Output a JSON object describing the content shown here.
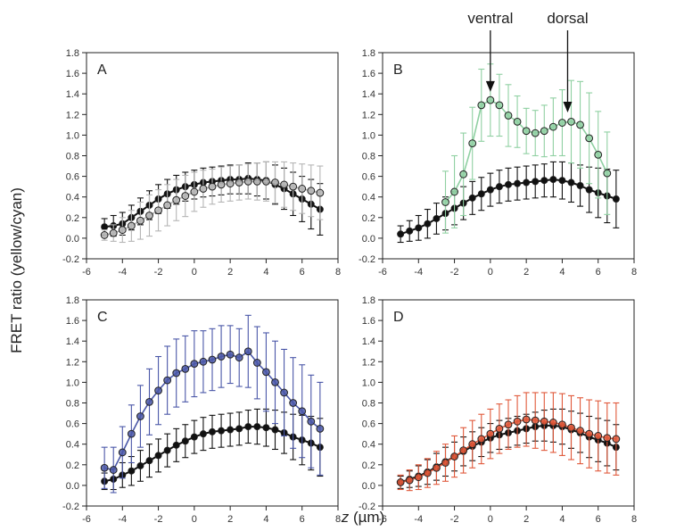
{
  "figure": {
    "ylabel": "FRET ratio (yellow/cyan)",
    "xlabel_italic": "z",
    "xlabel_unit": " (µm)"
  },
  "annotations": [
    {
      "label": "ventral",
      "x": 0.0
    },
    {
      "label": "dorsal",
      "x": 4.3
    }
  ],
  "colors": {
    "reference": "#111111",
    "A": "#b5b5b5",
    "B": "#8fd0a2",
    "C": "#4a57a8",
    "D": "#e0583a"
  },
  "chart_data": [
    {
      "type": "line",
      "panel": "A",
      "xlim": [
        -6,
        8
      ],
      "ylim": [
        -0.2,
        1.8
      ],
      "xticks": [
        -6,
        -4,
        -2,
        0,
        2,
        4,
        6,
        8
      ],
      "yticks": [
        -0.2,
        0.0,
        0.2,
        0.4,
        0.6,
        0.8,
        1.0,
        1.2,
        1.4,
        1.6,
        1.8
      ],
      "series": [
        {
          "style": "reference",
          "x": [
            -5,
            -4.5,
            -4,
            -3.5,
            -3,
            -2.5,
            -2,
            -1.5,
            -1,
            -0.5,
            0,
            0.5,
            1,
            1.5,
            2,
            2.5,
            3,
            3.5,
            4,
            4.5,
            5,
            5.5,
            6,
            6.5,
            7
          ],
          "y": [
            0.11,
            0.12,
            0.14,
            0.2,
            0.26,
            0.32,
            0.38,
            0.43,
            0.47,
            0.5,
            0.52,
            0.54,
            0.55,
            0.56,
            0.57,
            0.57,
            0.58,
            0.57,
            0.56,
            0.52,
            0.48,
            0.43,
            0.38,
            0.33,
            0.28
          ],
          "err": [
            0.08,
            0.1,
            0.11,
            0.12,
            0.13,
            0.14,
            0.14,
            0.14,
            0.14,
            0.14,
            0.14,
            0.14,
            0.14,
            0.14,
            0.14,
            0.14,
            0.15,
            0.16,
            0.18,
            0.19,
            0.2,
            0.21,
            0.22,
            0.24,
            0.25
          ]
        },
        {
          "style": "A",
          "x": [
            -5,
            -4.5,
            -4,
            -3.5,
            -3,
            -2.5,
            -2,
            -1.5,
            -1,
            -0.5,
            0,
            0.5,
            1,
            1.5,
            2,
            2.5,
            3,
            3.5,
            4,
            4.5,
            5,
            5.5,
            6,
            6.5,
            7
          ],
          "y": [
            0.03,
            0.05,
            0.08,
            0.12,
            0.17,
            0.22,
            0.27,
            0.32,
            0.37,
            0.41,
            0.45,
            0.48,
            0.5,
            0.52,
            0.53,
            0.54,
            0.55,
            0.55,
            0.55,
            0.54,
            0.52,
            0.5,
            0.48,
            0.46,
            0.44
          ],
          "err": [
            0.05,
            0.08,
            0.12,
            0.15,
            0.18,
            0.2,
            0.2,
            0.2,
            0.2,
            0.2,
            0.19,
            0.18,
            0.17,
            0.17,
            0.17,
            0.17,
            0.17,
            0.18,
            0.19,
            0.2,
            0.22,
            0.23,
            0.24,
            0.25,
            0.26
          ]
        }
      ]
    },
    {
      "type": "line",
      "panel": "B",
      "xlim": [
        -6,
        8
      ],
      "ylim": [
        -0.2,
        1.8
      ],
      "xticks": [
        -6,
        -4,
        -2,
        0,
        2,
        4,
        6,
        8
      ],
      "yticks": [
        -0.2,
        0.0,
        0.2,
        0.4,
        0.6,
        0.8,
        1.0,
        1.2,
        1.4,
        1.6,
        1.8
      ],
      "series": [
        {
          "style": "reference",
          "x": [
            -5,
            -4.5,
            -4,
            -3.5,
            -3,
            -2.5,
            -2,
            -1.5,
            -1,
            -0.5,
            0,
            0.5,
            1,
            1.5,
            2,
            2.5,
            3,
            3.5,
            4,
            4.5,
            5,
            5.5,
            6,
            6.5,
            7
          ],
          "y": [
            0.04,
            0.07,
            0.1,
            0.14,
            0.19,
            0.24,
            0.29,
            0.34,
            0.39,
            0.43,
            0.47,
            0.5,
            0.52,
            0.53,
            0.54,
            0.55,
            0.56,
            0.57,
            0.56,
            0.54,
            0.51,
            0.47,
            0.44,
            0.41,
            0.38
          ],
          "err": [
            0.08,
            0.1,
            0.12,
            0.14,
            0.15,
            0.16,
            0.16,
            0.16,
            0.16,
            0.16,
            0.16,
            0.16,
            0.16,
            0.16,
            0.16,
            0.16,
            0.16,
            0.17,
            0.18,
            0.19,
            0.2,
            0.22,
            0.24,
            0.26,
            0.28
          ]
        },
        {
          "style": "B",
          "x": [
            -2.5,
            -2,
            -1.5,
            -1,
            -0.5,
            0,
            0.5,
            1,
            1.5,
            2,
            2.5,
            3,
            3.5,
            4,
            4.5,
            5,
            5.5,
            6,
            6.5
          ],
          "y": [
            0.35,
            0.45,
            0.62,
            0.92,
            1.29,
            1.34,
            1.29,
            1.19,
            1.13,
            1.04,
            1.02,
            1.04,
            1.08,
            1.12,
            1.13,
            1.1,
            0.97,
            0.81,
            0.63
          ],
          "err": [
            0.3,
            0.35,
            0.4,
            0.35,
            0.35,
            0.35,
            0.3,
            0.3,
            0.25,
            0.22,
            0.22,
            0.25,
            0.28,
            0.32,
            0.4,
            0.42,
            0.44,
            0.42,
            0.4
          ]
        }
      ]
    },
    {
      "type": "line",
      "panel": "C",
      "xlim": [
        -6,
        8
      ],
      "ylim": [
        -0.2,
        1.8
      ],
      "xticks": [
        -6,
        -4,
        -2,
        0,
        2,
        4,
        6,
        8
      ],
      "yticks": [
        -0.2,
        0.0,
        0.2,
        0.4,
        0.6,
        0.8,
        1.0,
        1.2,
        1.4,
        1.6,
        1.8
      ],
      "series": [
        {
          "style": "reference",
          "x": [
            -5,
            -4.5,
            -4,
            -3.5,
            -3,
            -2.5,
            -2,
            -1.5,
            -1,
            -0.5,
            0,
            0.5,
            1,
            1.5,
            2,
            2.5,
            3,
            3.5,
            4,
            4.5,
            5,
            5.5,
            6,
            6.5,
            7
          ],
          "y": [
            0.04,
            0.06,
            0.1,
            0.14,
            0.19,
            0.24,
            0.29,
            0.34,
            0.39,
            0.43,
            0.47,
            0.5,
            0.52,
            0.53,
            0.54,
            0.55,
            0.57,
            0.57,
            0.56,
            0.54,
            0.51,
            0.47,
            0.44,
            0.41,
            0.37
          ],
          "err": [
            0.08,
            0.1,
            0.12,
            0.14,
            0.15,
            0.16,
            0.16,
            0.16,
            0.16,
            0.16,
            0.16,
            0.16,
            0.16,
            0.16,
            0.16,
            0.16,
            0.16,
            0.17,
            0.18,
            0.19,
            0.2,
            0.22,
            0.24,
            0.26,
            0.28
          ]
        },
        {
          "style": "C",
          "x": [
            -5,
            -4.5,
            -4,
            -3.5,
            -3,
            -2.5,
            -2,
            -1.5,
            -1,
            -0.5,
            0,
            0.5,
            1,
            1.5,
            2,
            2.5,
            3,
            3.5,
            4,
            4.5,
            5,
            5.5,
            6,
            6.5,
            7
          ],
          "y": [
            0.17,
            0.15,
            0.32,
            0.5,
            0.67,
            0.81,
            0.92,
            1.02,
            1.09,
            1.13,
            1.18,
            1.2,
            1.22,
            1.25,
            1.27,
            1.24,
            1.3,
            1.19,
            1.1,
            1.0,
            0.9,
            0.8,
            0.72,
            0.62,
            0.55
          ],
          "err": [
            0.2,
            0.22,
            0.25,
            0.28,
            0.3,
            0.32,
            0.33,
            0.33,
            0.33,
            0.32,
            0.32,
            0.3,
            0.3,
            0.3,
            0.28,
            0.28,
            0.35,
            0.35,
            0.38,
            0.4,
            0.42,
            0.44,
            0.45,
            0.45,
            0.45
          ]
        }
      ]
    },
    {
      "type": "line",
      "panel": "D",
      "xlim": [
        -6,
        8
      ],
      "ylim": [
        -0.2,
        1.8
      ],
      "xticks": [
        -6,
        -4,
        -2,
        0,
        2,
        4,
        6,
        8
      ],
      "yticks": [
        -0.2,
        0.0,
        0.2,
        0.4,
        0.6,
        0.8,
        1.0,
        1.2,
        1.4,
        1.6,
        1.8
      ],
      "series": [
        {
          "style": "reference",
          "x": [
            -5,
            -4.5,
            -4,
            -3.5,
            -3,
            -2.5,
            -2,
            -1.5,
            -1,
            -0.5,
            0,
            0.5,
            1,
            1.5,
            2,
            2.5,
            3,
            3.5,
            4,
            4.5,
            5,
            5.5,
            6,
            6.5,
            7
          ],
          "y": [
            0.03,
            0.06,
            0.09,
            0.13,
            0.18,
            0.23,
            0.28,
            0.33,
            0.38,
            0.42,
            0.46,
            0.49,
            0.51,
            0.53,
            0.55,
            0.57,
            0.58,
            0.58,
            0.57,
            0.54,
            0.51,
            0.47,
            0.44,
            0.41,
            0.37
          ],
          "err": [
            0.06,
            0.08,
            0.1,
            0.12,
            0.13,
            0.14,
            0.14,
            0.14,
            0.14,
            0.14,
            0.14,
            0.14,
            0.14,
            0.14,
            0.14,
            0.14,
            0.15,
            0.16,
            0.17,
            0.18,
            0.19,
            0.2,
            0.21,
            0.22,
            0.22
          ]
        },
        {
          "style": "D",
          "x": [
            -5,
            -4.5,
            -4,
            -3.5,
            -3,
            -2.5,
            -2,
            -1.5,
            -1,
            -0.5,
            0,
            0.5,
            1,
            1.5,
            2,
            2.5,
            3,
            3.5,
            4,
            4.5,
            5,
            5.5,
            6,
            6.5,
            7
          ],
          "y": [
            0.03,
            0.05,
            0.08,
            0.12,
            0.17,
            0.22,
            0.28,
            0.34,
            0.4,
            0.45,
            0.5,
            0.55,
            0.59,
            0.62,
            0.64,
            0.63,
            0.62,
            0.61,
            0.59,
            0.56,
            0.53,
            0.5,
            0.48,
            0.46,
            0.45
          ],
          "err": [
            0.07,
            0.1,
            0.12,
            0.14,
            0.16,
            0.18,
            0.2,
            0.22,
            0.23,
            0.24,
            0.24,
            0.24,
            0.24,
            0.25,
            0.26,
            0.27,
            0.28,
            0.29,
            0.3,
            0.31,
            0.32,
            0.33,
            0.34,
            0.34,
            0.35
          ]
        }
      ]
    }
  ]
}
